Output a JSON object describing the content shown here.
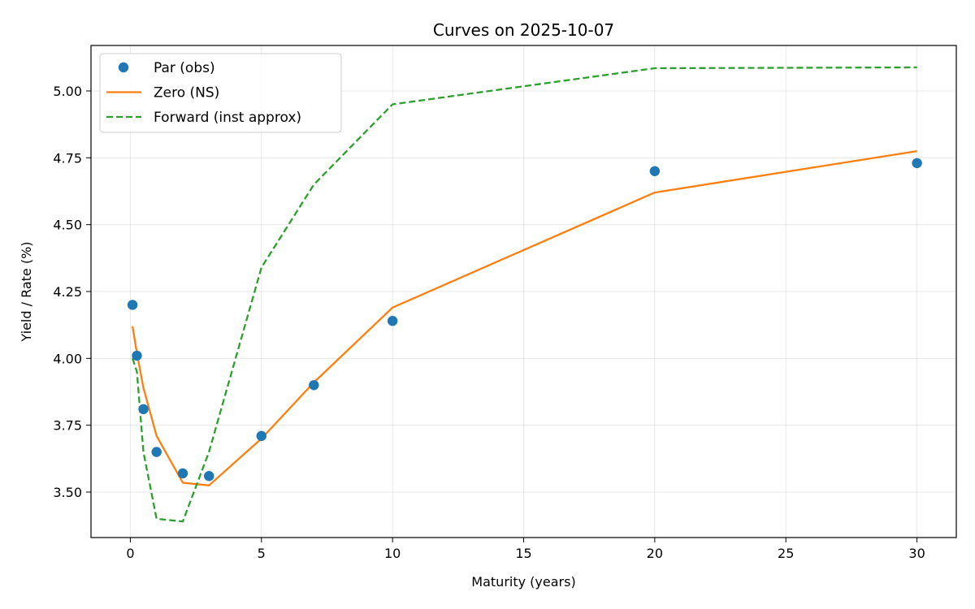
{
  "chart_data": {
    "type": "line",
    "title": "Curves on 2025-10-07",
    "xlabel": "Maturity (years)",
    "ylabel": "Yield / Rate (%)",
    "xlim": [
      -1.5,
      31.5
    ],
    "ylim": [
      3.33,
      5.17
    ],
    "xticks": [
      0,
      5,
      10,
      15,
      20,
      25,
      30
    ],
    "yticks": [
      3.5,
      3.75,
      4.0,
      4.25,
      4.5,
      4.75,
      5.0
    ],
    "xtick_labels": [
      "0",
      "5",
      "10",
      "15",
      "20",
      "25",
      "30"
    ],
    "ytick_labels": [
      "3.50",
      "3.75",
      "4.00",
      "4.25",
      "4.50",
      "4.75",
      "5.00"
    ],
    "grid": true,
    "legend_position": "top-left",
    "series": [
      {
        "name": "Par (obs)",
        "style": "markers",
        "color": "#1f77b4",
        "x": [
          0.083,
          0.25,
          0.5,
          1,
          2,
          3,
          5,
          7,
          10,
          20,
          30
        ],
        "y": [
          4.2,
          4.01,
          3.81,
          3.65,
          3.57,
          3.56,
          3.71,
          3.9,
          4.14,
          4.7,
          4.73
        ]
      },
      {
        "name": "Zero (NS)",
        "style": "solid",
        "color": "#ff7f0e",
        "x": [
          0.083,
          0.25,
          0.5,
          1,
          2,
          3,
          5,
          7,
          10,
          20,
          30
        ],
        "y": [
          4.12,
          4.02,
          3.89,
          3.71,
          3.535,
          3.525,
          3.7,
          3.91,
          4.19,
          4.62,
          4.775
        ]
      },
      {
        "name": "Forward (inst approx)",
        "style": "dashed",
        "color": "#2ca02c",
        "x": [
          0.083,
          0.25,
          0.5,
          1,
          2,
          3,
          5,
          7,
          10,
          20,
          30
        ],
        "y": [
          4.0,
          3.95,
          3.65,
          3.4,
          3.39,
          3.65,
          4.34,
          4.65,
          4.95,
          5.085,
          5.088
        ]
      }
    ]
  }
}
